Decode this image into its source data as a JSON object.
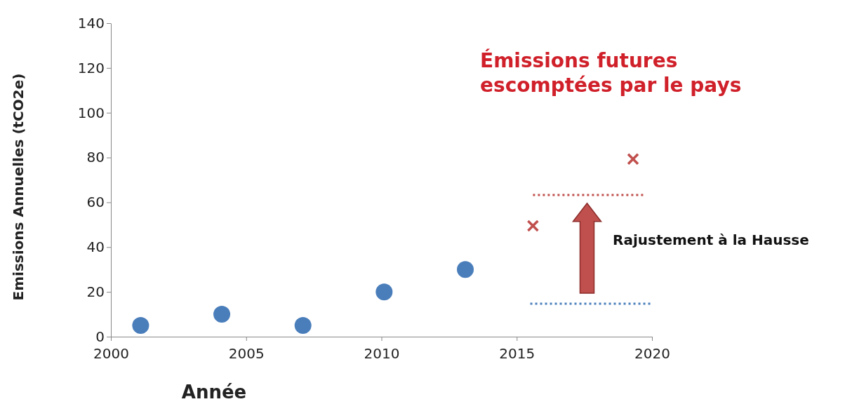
{
  "chart_data": {
    "type": "scatter",
    "xlabel": "Année",
    "ylabel": "Emissions Annuelles (tCO2e)",
    "xlim": [
      2000,
      2020
    ],
    "xticks": [
      2000,
      2005,
      2010,
      2015,
      2020
    ],
    "ylim": [
      0,
      140
    ],
    "yticks": [
      0,
      20,
      40,
      60,
      80,
      100,
      120,
      140
    ],
    "grid": false,
    "series": [
      {
        "color": "#4a7ebb",
        "marker": "circle",
        "x": [
          2001.1,
          2004.1,
          2007.1,
          2010.1,
          2013.1
        ],
        "values": [
          5,
          10,
          5,
          20,
          30
        ]
      },
      {
        "color": "#c0504d",
        "marker": "cross",
        "x": [
          2015.6,
          2019.3
        ],
        "values": [
          49.5,
          79.3
        ]
      },
      {
        "type": "line",
        "color": "#c0504d",
        "marker": "none",
        "line_style": "dotted",
        "x": [
          2015.6,
          2019.7
        ],
        "values": [
          63.3,
          63.3
        ]
      },
      {
        "type": "line",
        "color": "#4a7ebb",
        "marker": "none",
        "line_style": "dotted",
        "x": [
          2015.5,
          2020
        ],
        "values": [
          14.7,
          14.7
        ]
      }
    ],
    "annotations": [
      "Émissions futures\nescomptées par le pays",
      "Rajustement à la Hausse"
    ]
  }
}
